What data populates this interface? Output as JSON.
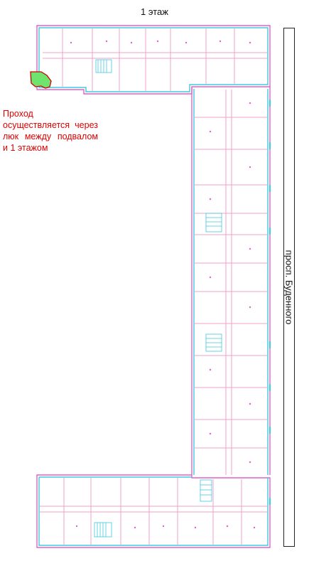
{
  "floor_title": "1 этаж",
  "note": "Проход осуществляется через люк между подвалом и 1 этажом",
  "street_label": "просп. Буденного",
  "colors": {
    "note_text": "#e00000",
    "highlight_fill": "#6ee36e",
    "highlight_border": "#d00000",
    "wall_cyan": "#40c8e0",
    "wall_magenta": "#e060d0",
    "wall_pink": "#f2a0c8"
  }
}
